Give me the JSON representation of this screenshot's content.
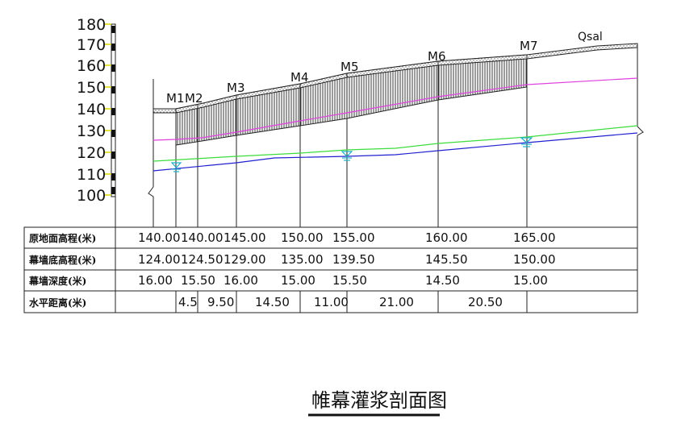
{
  "axis_labels": [
    "180",
    "170",
    "160",
    "150",
    "140",
    "130",
    "120",
    "110",
    "100"
  ],
  "point_labels": [
    "M1",
    "M2",
    "M3",
    "M4",
    "M5",
    "M6",
    "M7"
  ],
  "stratum_label": "Qsal",
  "table": {
    "rows": [
      {
        "label": "原地面高程(米)",
        "values": [
          "140.00",
          "140.00",
          "145.00",
          "150.00",
          "155.00",
          "160.00",
          "165.00"
        ]
      },
      {
        "label": "幕墙底高程(米)",
        "values": [
          "124.00",
          "124.50",
          "129.00",
          "135.00",
          "139.50",
          "145.50",
          "150.00"
        ]
      },
      {
        "label": "幕墙深度(米)",
        "values": [
          "16.00",
          "15.50",
          "16.00",
          "15.00",
          "15.50",
          "14.50",
          "15.00"
        ]
      },
      {
        "label": "水平距离(米)",
        "values": [
          "4.5",
          "9.50",
          "14.50",
          "11.00",
          "21.00",
          "20.50"
        ]
      }
    ]
  },
  "title": "帷幕灌浆剖面图",
  "colors": {
    "curtain_bottom_line": "#e040e0",
    "water_line_upper": "#3cdc3c",
    "water_line_lower": "#2020d0",
    "water_symbol": "#20b0c8",
    "ruler_tick": "#d8d800"
  }
}
